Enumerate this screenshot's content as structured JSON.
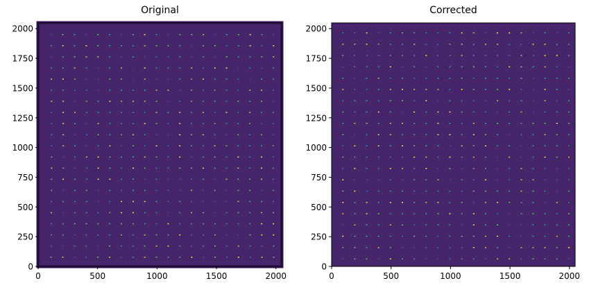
{
  "chart_data": [
    {
      "type": "heatmap",
      "title": "Original",
      "xlim": [
        0,
        2048
      ],
      "ylim": [
        0,
        2048
      ],
      "xticks": [
        "0",
        "500",
        "1000",
        "1500",
        "2000"
      ],
      "yticks": [
        "0",
        "250",
        "500",
        "750",
        "1000",
        "1250",
        "1500",
        "1750",
        "2000"
      ],
      "colormap": "viridis",
      "background_color": "#46256b",
      "distorted": true
    },
    {
      "type": "heatmap",
      "title": "Corrected",
      "xlim": [
        0,
        2048
      ],
      "ylim": [
        0,
        2048
      ],
      "xticks": [
        "0",
        "500",
        "1000",
        "1500",
        "2000"
      ],
      "yticks": [
        "0",
        "250",
        "500",
        "750",
        "1000",
        "1250",
        "1500",
        "1750",
        "2000"
      ],
      "colormap": "viridis",
      "background_color": "#46256b",
      "distorted": false
    }
  ]
}
